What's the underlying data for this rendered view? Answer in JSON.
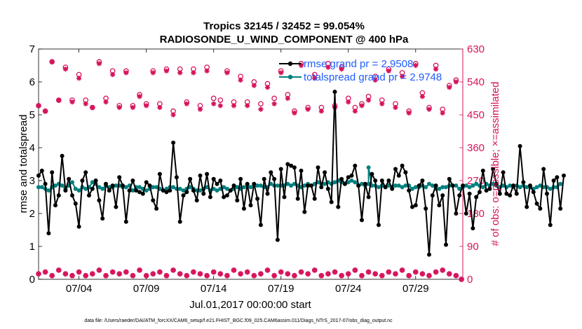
{
  "chart_data": {
    "type": "line",
    "title_line1": "Tropics 32145 / 32452 = 99.054%",
    "title_line2": "RADIOSONDE_U_WIND_COMPONENT @ 400 hPa",
    "xlabel": "Jul.01,2017 00:00:00 start",
    "ylabel_left": "rmse and totalspread",
    "ylabel_right": "# of obs: o=possible; ×=assimilated",
    "footnote": "data file: /Users/raeder/DAI/ATM_forcXX/CAM6_setup/f.e21.FHIST_BGC.f09_025.CAM6assim.011/Diags_NTrS_2017-07/obs_diag_output.nc",
    "xlim": [
      1,
      32.5
    ],
    "ylim_left": [
      0,
      7
    ],
    "ylim_right": [
      0,
      630
    ],
    "x_ticks": [
      4,
      9,
      14,
      19,
      24,
      29
    ],
    "x_tick_labels": [
      "07/04",
      "07/09",
      "07/14",
      "07/19",
      "07/24",
      "07/29"
    ],
    "y_left_ticks": [
      "0",
      "1",
      "2",
      "3",
      "4",
      "5",
      "6",
      "7"
    ],
    "y_right_ticks": [
      "0",
      "90",
      "180",
      "270",
      "360",
      "450",
      "540",
      "630"
    ],
    "legend": {
      "rmse": "rmse grand pr = 2.9508",
      "spread": "totalspread grand pr = 2.9748"
    },
    "colors": {
      "rmse": "#000000",
      "spread": "#00807f",
      "obs": "#d6135c",
      "legend_text": "#1f5bff"
    },
    "x_start": 1.0,
    "x_step": 0.25,
    "series": [
      {
        "name": "rmse",
        "values": [
          3.15,
          3.3,
          2.9,
          1.4,
          3.25,
          2.25,
          2.55,
          3.75,
          2.7,
          3.05,
          2.55,
          2.3,
          1.6,
          3.0,
          3.25,
          2.55,
          2.75,
          3.0,
          2.4,
          1.85,
          2.9,
          2.7,
          2.85,
          2.2,
          3.1,
          2.85,
          1.75,
          2.7,
          3.0,
          2.7,
          2.65,
          2.6,
          2.95,
          2.85,
          2.4,
          2.15,
          3.2,
          2.7,
          2.65,
          2.7,
          4.15,
          3.1,
          1.75,
          2.55,
          2.65,
          3.05,
          2.7,
          2.4,
          3.15,
          2.6,
          3.2,
          2.5,
          3.05,
          2.9,
          3.0,
          2.5,
          2.55,
          2.7,
          2.85,
          2.4,
          3.05,
          2.15,
          2.9,
          2.25,
          2.9,
          2.45,
          1.65,
          3.05,
          2.6,
          3.25,
          3.05,
          1.2,
          3.35,
          2.5,
          3.5,
          3.45,
          3.4,
          2.45,
          3.3,
          2.05,
          2.85,
          2.85,
          2.45,
          3.4,
          2.8,
          3.25,
          2.75,
          2.35,
          5.7,
          2.2,
          3.05,
          2.9,
          3.1,
          3.15,
          3.45,
          2.85,
          1.8,
          2.9,
          2.5,
          3.2,
          3.0,
          1.65,
          3.0,
          2.8,
          3.0,
          2.75,
          3.35,
          3.15,
          3.45,
          3.25,
          2.7,
          2.2,
          2.25,
          2.85,
          3.0,
          2.15,
          0.75,
          2.55,
          2.85,
          2.25,
          2.55,
          1.05,
          3.05,
          2.85,
          2.0,
          2.55,
          2.85,
          2.0,
          2.6,
          1.55,
          2.5,
          2.65,
          3.3,
          2.7,
          2.75,
          3.35,
          2.9,
          2.6,
          3.25,
          2.6,
          2.55,
          2.85,
          2.6,
          4.05,
          2.95,
          2.2,
          2.85,
          2.65,
          2.3,
          2.15,
          3.35,
          2.6,
          1.65,
          3.0,
          3.1,
          2.15,
          3.15
        ]
      },
      {
        "name": "totalspread",
        "values": [
          2.8,
          2.8,
          2.75,
          2.7,
          2.8,
          2.85,
          2.9,
          2.85,
          2.75,
          2.85,
          2.95,
          2.75,
          2.7,
          2.8,
          2.75,
          2.8,
          2.95,
          2.9,
          2.8,
          2.75,
          2.85,
          2.8,
          2.8,
          2.85,
          2.85,
          2.8,
          2.8,
          2.85,
          2.7,
          2.8,
          2.8,
          2.75,
          2.7,
          2.75,
          2.8,
          2.8,
          2.75,
          2.7,
          2.75,
          2.8,
          2.8,
          2.75,
          2.75,
          2.7,
          2.75,
          2.8,
          2.75,
          2.7,
          2.7,
          2.75,
          2.8,
          2.7,
          2.75,
          2.7,
          2.75,
          2.8,
          2.75,
          2.7,
          2.75,
          2.8,
          2.75,
          2.8,
          2.85,
          2.8,
          2.85,
          2.85,
          2.85,
          2.8,
          2.8,
          2.9,
          2.85,
          2.85,
          2.85,
          2.85,
          2.9,
          2.85,
          2.9,
          2.85,
          2.8,
          2.85,
          2.9,
          2.85,
          2.9,
          2.95,
          2.9,
          2.9,
          2.95,
          2.9,
          2.95,
          3.0,
          2.95,
          2.9,
          2.95,
          3.0,
          2.95,
          2.85,
          2.9,
          2.85,
          2.9,
          2.85,
          2.85,
          2.8,
          2.85,
          2.8,
          2.85,
          2.8,
          2.85,
          2.85,
          2.8,
          2.85,
          2.85,
          2.75,
          2.8,
          2.8,
          2.85,
          2.8,
          2.9,
          2.85,
          2.75,
          2.75,
          2.8,
          2.8,
          2.85,
          2.85,
          2.85,
          2.75,
          2.8,
          2.85,
          2.8,
          2.85,
          2.9,
          2.85,
          2.8,
          2.9,
          2.85,
          2.9,
          2.85,
          2.8,
          2.85,
          2.8,
          2.85,
          2.8,
          2.85,
          2.8,
          2.85,
          2.8,
          2.8,
          2.75,
          2.8,
          2.85,
          2.8,
          2.8,
          2.75,
          2.8,
          2.8,
          2.9
        ]
      }
    ],
    "spread_spike": {
      "x": 25.5,
      "value": 3.4
    },
    "obs_possible": {
      "x": [
        1.0,
        1.5,
        2.0,
        2.5,
        3.0,
        3.5,
        4.0,
        4.5,
        5.0,
        5.5,
        6.0,
        6.5,
        7.0,
        7.5,
        8.0,
        8.5,
        9.0,
        9.5,
        10.0,
        10.5,
        11.0,
        11.5,
        12.0,
        12.5,
        13.0,
        13.5,
        14.0,
        14.5,
        15.0,
        15.5,
        16.0,
        16.5,
        17.0,
        17.5,
        18.0,
        18.5,
        19.0,
        19.5,
        20.0,
        20.5,
        21.0,
        21.5,
        22.0,
        22.5,
        23.0,
        23.5,
        24.0,
        24.5,
        25.0,
        25.5,
        26.0,
        26.5,
        27.0,
        27.5,
        28.0,
        28.5,
        29.0,
        29.5,
        30.0,
        30.5,
        31.0,
        31.5,
        32.0
      ],
      "values": [
        475,
        460,
        595,
        490,
        580,
        490,
        560,
        490,
        470,
        595,
        495,
        570,
        475,
        570,
        475,
        505,
        480,
        570,
        480,
        575,
        460,
        575,
        485,
        575,
        475,
        580,
        495,
        490,
        570,
        485,
        555,
        485,
        540,
        480,
        535,
        495,
        570,
        505,
        460,
        590,
        470,
        560,
        470,
        590,
        475,
        580,
        495,
        470,
        480,
        500,
        555,
        490,
        575,
        480,
        565,
        460,
        590,
        510,
        470,
        585,
        465,
        530,
        545
      ]
    },
    "obs_assim": {
      "x": [
        1.0,
        1.5,
        2.0,
        2.5,
        3.0,
        3.5,
        4.0,
        4.5,
        5.0,
        5.5,
        6.0,
        6.5,
        7.0,
        7.5,
        8.0,
        8.5,
        9.0,
        9.5,
        10.0,
        10.5,
        11.0,
        11.5,
        12.0,
        12.5,
        13.0,
        13.5,
        14.0,
        14.5,
        15.0,
        15.5,
        16.0,
        16.5,
        17.0,
        17.5,
        18.0,
        18.5,
        19.0,
        19.5,
        20.0,
        20.5,
        21.0,
        21.5,
        22.0,
        22.5,
        23.0,
        23.5,
        24.0,
        24.5,
        25.0,
        25.5,
        26.0,
        26.5,
        27.0,
        27.5,
        28.0,
        28.5,
        29.0,
        29.5,
        30.0,
        30.5,
        31.0,
        31.5,
        32.0
      ],
      "values": [
        475,
        460,
        595,
        490,
        575,
        485,
        550,
        480,
        470,
        590,
        485,
        560,
        470,
        565,
        470,
        500,
        475,
        565,
        470,
        570,
        450,
        565,
        480,
        565,
        465,
        570,
        480,
        475,
        565,
        475,
        545,
        475,
        530,
        465,
        525,
        480,
        565,
        495,
        455,
        585,
        465,
        550,
        460,
        580,
        470,
        575,
        485,
        460,
        475,
        490,
        545,
        480,
        570,
        470,
        555,
        455,
        585,
        500,
        465,
        575,
        455,
        525,
        540
      ]
    },
    "obs_low": {
      "x": [
        1.0,
        1.5,
        2.0,
        2.5,
        3.0,
        3.5,
        4.0,
        4.5,
        5.0,
        5.5,
        6.0,
        6.5,
        7.0,
        7.5,
        8.0,
        8.5,
        9.0,
        9.5,
        10.0,
        10.5,
        11.0,
        11.5,
        12.0,
        12.5,
        13.0,
        13.5,
        14.0,
        14.5,
        15.0,
        15.5,
        16.0,
        16.5,
        17.0,
        17.5,
        18.0,
        18.5,
        19.0,
        19.5,
        20.0,
        20.5,
        21.0,
        21.5,
        22.0,
        22.5,
        23.0,
        23.5,
        24.0,
        24.5,
        25.0,
        25.5,
        26.0,
        26.5,
        27.0,
        27.5,
        28.0,
        28.5,
        29.0,
        29.5,
        30.0,
        30.5,
        31.0,
        31.5,
        32.0,
        32.4
      ],
      "values": [
        15,
        20,
        10,
        25,
        15,
        10,
        20,
        10,
        15,
        25,
        10,
        20,
        15,
        20,
        10,
        25,
        10,
        15,
        20,
        10,
        25,
        15,
        10,
        20,
        15,
        10,
        20,
        15,
        10,
        25,
        15,
        20,
        10,
        15,
        25,
        10,
        20,
        15,
        10,
        20,
        15,
        25,
        10,
        15,
        20,
        10,
        15,
        25,
        10,
        20,
        15,
        10,
        20,
        15,
        25,
        10,
        20,
        15,
        10,
        20,
        25,
        15,
        10,
        0
      ]
    }
  }
}
